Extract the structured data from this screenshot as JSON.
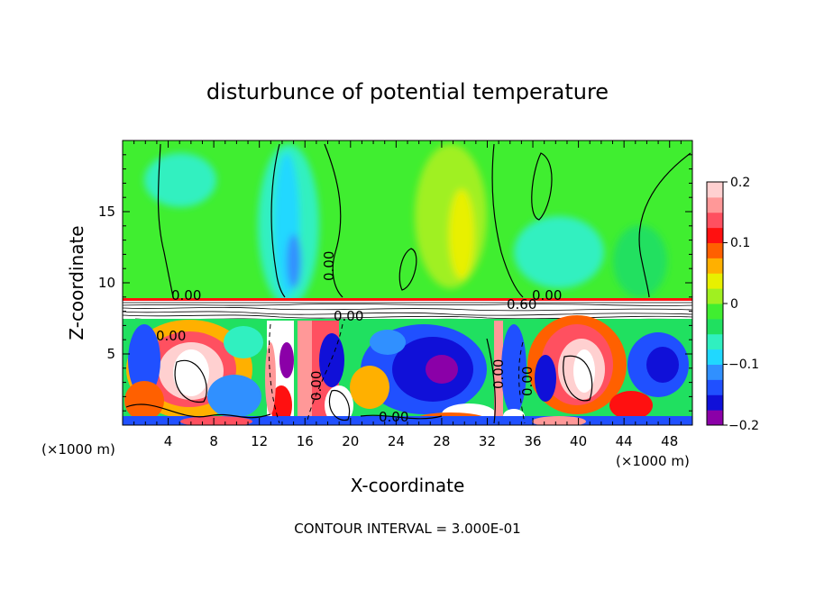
{
  "chart_data": {
    "type": "heatmap",
    "title": "disturbunce of potential temperature",
    "xlabel": "X-coordinate",
    "ylabel": "Z-coordinate",
    "x_unit_label": "(×1000 m)",
    "y_unit_label": "(×1000 m)",
    "xlim": [
      0,
      50
    ],
    "ylim": [
      0,
      20
    ],
    "x_ticks": [
      "4",
      "8",
      "12",
      "16",
      "20",
      "24",
      "28",
      "32",
      "36",
      "40",
      "44",
      "48"
    ],
    "y_ticks": [
      "5",
      "10",
      "15"
    ],
    "colorbar": {
      "range": [
        -0.2,
        0.2
      ],
      "tick_labels": [
        "0.2",
        "0.1",
        "0",
        "−0.1",
        "−0.2"
      ],
      "colors": [
        "#8b00a8",
        "#1010d8",
        "#2050ff",
        "#3090ff",
        "#20d8ff",
        "#30f0c0",
        "#20e060",
        "#40ee30",
        "#a0f020",
        "#e8f000",
        "#ffb000",
        "#ff6000",
        "#ff1010",
        "#ff5060",
        "#ff9898",
        "#ffd0d0"
      ]
    },
    "contour_labels": [
      "0.00",
      "0.00",
      "0.00",
      "0.00",
      "0.00",
      "0.60",
      "0.00",
      "0.00",
      "0.00",
      "0.00"
    ],
    "footnote": "CONTOUR INTERVAL = 3.000E-01"
  }
}
